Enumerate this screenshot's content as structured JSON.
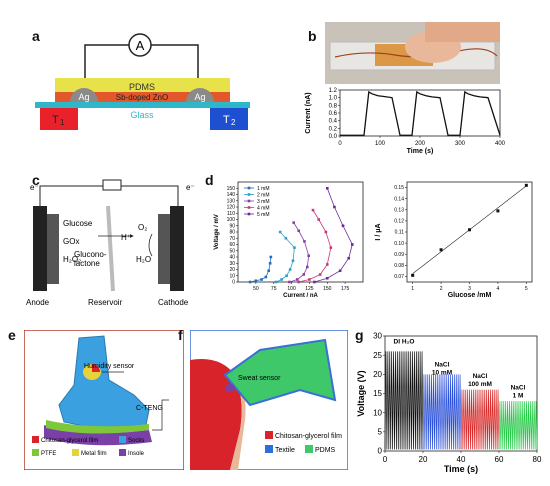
{
  "panels": {
    "a": {
      "label": "a",
      "ammeter": "A",
      "pdms": "PDMS",
      "zno": "Sb-doped ZnO",
      "ag_left": "Ag",
      "ag_right": "Ag",
      "glass": "Glass",
      "t1": "T",
      "t1_sub": "1",
      "t2": "T",
      "t2_sub": "2",
      "colors": {
        "pdms": "#e8e24a",
        "zno": "#e2572b",
        "ag": "#8a8a8a",
        "glass": "#2fb6c9",
        "t1": "#e8212b",
        "t2": "#1f4fd1"
      }
    },
    "b": {
      "label": "b",
      "ylabel": "Current (nA)",
      "xlabel": "Time (s)"
    },
    "c": {
      "label": "c",
      "e_left": "e⁻",
      "e_right": "e⁻",
      "glucose": "Glucose",
      "gox": "GOx",
      "h2o2": "H₂O₂",
      "gluconolactone": "Glucono-",
      "gluconolactone2": "lactone",
      "hplus": "H⁺",
      "o2": "O₂",
      "h2o": "H₂O",
      "anode": "Anode",
      "reservoir": "Reservoir",
      "cathode": "Cathode"
    },
    "d": {
      "label": "d",
      "left_ylabel": "Voltage / mV",
      "left_xlabel": "Current / nA",
      "right_ylabel": "I / μA",
      "right_xlabel": "Glucose /mM"
    },
    "e": {
      "label": "e",
      "humidity": "Humidity sensor",
      "cteng": "C-TENG",
      "legend": [
        {
          "text": "Chitosan-glycerol film",
          "color": "#d8232a"
        },
        {
          "text": "Socks",
          "color": "#3aa0e0"
        },
        {
          "text": "PTFE",
          "color": "#7cc83a"
        },
        {
          "text": "Metal film",
          "color": "#e8d23a"
        },
        {
          "text": "Insole",
          "color": "#7b3fa8"
        }
      ]
    },
    "f": {
      "label": "f",
      "sweat": "Sweat sensor",
      "legend": [
        {
          "text": "Chitosan-glycerol film",
          "color": "#d8232a"
        },
        {
          "text": "Textile",
          "color": "#2f6fd8"
        },
        {
          "text": "PDMS",
          "color": "#3fc86a"
        }
      ]
    },
    "g": {
      "label": "g",
      "ylabel": "Voltage (V)",
      "xlabel": "Time (s)",
      "annotations": [
        {
          "line1": "DI H₂O",
          "line2": ""
        },
        {
          "line1": "NaCl",
          "line2": "10 mM"
        },
        {
          "line1": "NaCl",
          "line2": "100 mM"
        },
        {
          "line1": "NaCl",
          "line2": "1 M"
        }
      ]
    }
  },
  "chart_data": [
    {
      "type": "line",
      "panel": "b",
      "ylabel": "Current (nA)",
      "xlabel": "Time (s)",
      "xlim": [
        0,
        400
      ],
      "ylim": [
        0.0,
        1.2
      ],
      "xticks": [
        "0",
        "100",
        "200",
        "300",
        "400"
      ],
      "yticks": [
        "0.0",
        "0.2",
        "0.4",
        "0.6",
        "0.8",
        "1.0",
        "1.2"
      ],
      "series": [
        {
          "x": [
            0,
            60,
            72,
            80,
            95,
            110,
            130,
            150,
            180,
            192,
            200,
            215,
            230,
            250,
            270,
            300,
            312,
            320,
            335,
            350,
            370,
            400
          ],
          "y": [
            0.02,
            0.02,
            1.15,
            1.1,
            1.05,
            1.03,
            1.0,
            0.02,
            0.02,
            1.15,
            1.1,
            1.05,
            1.02,
            1.0,
            0.02,
            0.02,
            1.15,
            1.1,
            1.05,
            1.02,
            1.0,
            0.02
          ]
        }
      ]
    },
    {
      "type": "scatter",
      "panel": "d-left",
      "xlabel": "Current / nA",
      "ylabel": "Voltage / mV",
      "xlim": [
        25,
        200
      ],
      "ylim": [
        0,
        160
      ],
      "xticks": [
        "50",
        "75",
        "100",
        "125",
        "150",
        "175"
      ],
      "yticks": [
        "0",
        "10",
        "20",
        "30",
        "40",
        "50",
        "60",
        "70",
        "80",
        "90",
        "100",
        "110",
        "120",
        "130",
        "140",
        "150"
      ],
      "series": [
        {
          "name": "1 mM",
          "color": "#1a6fbf",
          "x": [
            42,
            50,
            58,
            64,
            68,
            70,
            71
          ],
          "y": [
            0,
            2,
            4,
            8,
            18,
            30,
            40
          ]
        },
        {
          "name": "2 mM",
          "color": "#2ea0c8",
          "x": [
            78,
            86,
            93,
            98,
            102,
            104,
            92,
            84
          ],
          "y": [
            0,
            4,
            10,
            20,
            34,
            55,
            70,
            80
          ]
        },
        {
          "name": "3 mM",
          "color": "#8a3fa8",
          "x": [
            97,
            108,
            117,
            122,
            124,
            118,
            110,
            103
          ],
          "y": [
            0,
            4,
            12,
            24,
            42,
            65,
            82,
            95
          ]
        },
        {
          "name": "4 mM",
          "color": "#c8397a",
          "x": [
            110,
            125,
            140,
            150,
            155,
            148,
            138,
            130
          ],
          "y": [
            0,
            4,
            12,
            28,
            55,
            80,
            100,
            115
          ]
        },
        {
          "name": "5 mM",
          "color": "#6a2a9a",
          "x": [
            132,
            150,
            168,
            180,
            185,
            172,
            160,
            150
          ],
          "y": [
            0,
            6,
            18,
            38,
            60,
            90,
            120,
            150
          ]
        }
      ]
    },
    {
      "type": "scatter",
      "panel": "d-right",
      "xlabel": "Glucose /mM",
      "ylabel": "I / μA",
      "xlim": [
        0.8,
        5.2
      ],
      "ylim": [
        0.065,
        0.155
      ],
      "xticks": [
        "1",
        "2",
        "3",
        "4",
        "5"
      ],
      "yticks": [
        "0.07",
        "0.08",
        "0.09",
        "0.10",
        "0.11",
        "0.12",
        "0.13",
        "0.14",
        "0.15"
      ],
      "series": [
        {
          "x": [
            1,
            2,
            3,
            4,
            5
          ],
          "y": [
            0.071,
            0.094,
            0.112,
            0.129,
            0.152
          ]
        }
      ]
    },
    {
      "type": "line",
      "panel": "g",
      "ylabel": "Voltage (V)",
      "xlabel": "Time (s)",
      "xlim": [
        0,
        80
      ],
      "ylim": [
        0,
        30
      ],
      "xticks": [
        "0",
        "20",
        "40",
        "60",
        "80"
      ],
      "yticks": [
        "0",
        "5",
        "10",
        "15",
        "20",
        "25",
        "30"
      ],
      "segments": [
        {
          "x0": 0,
          "x1": 20,
          "peak": 26,
          "color": "#111111"
        },
        {
          "x0": 20,
          "x1": 40,
          "peak": 20,
          "color": "#2a4fd8"
        },
        {
          "x0": 40,
          "x1": 60,
          "peak": 16,
          "color": "#d82a2a"
        },
        {
          "x0": 60,
          "x1": 80,
          "peak": 13,
          "color": "#2ac84a"
        }
      ]
    }
  ]
}
